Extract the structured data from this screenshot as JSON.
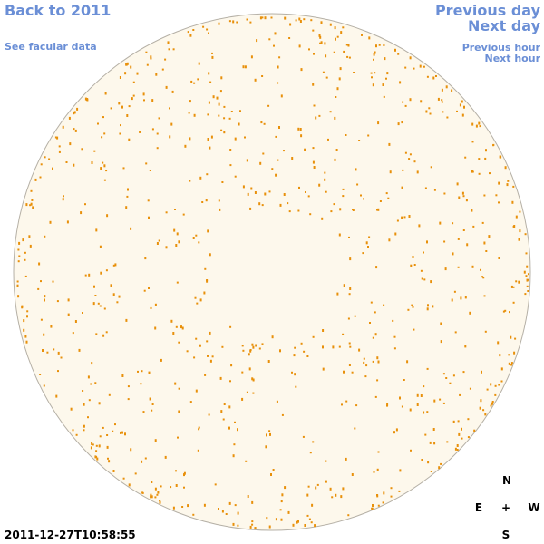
{
  "nav": {
    "back": "Back to 2011",
    "facular": "See facular data",
    "previous_day": "Previous day",
    "next_day": "Next day",
    "previous_hour": "Previous hour",
    "next_hour": "Next hour"
  },
  "timestamp": "2011-12-27T10:58:55",
  "compass": {
    "north": "N",
    "east": "E",
    "center": "+",
    "west": "W",
    "south": "S"
  }
}
